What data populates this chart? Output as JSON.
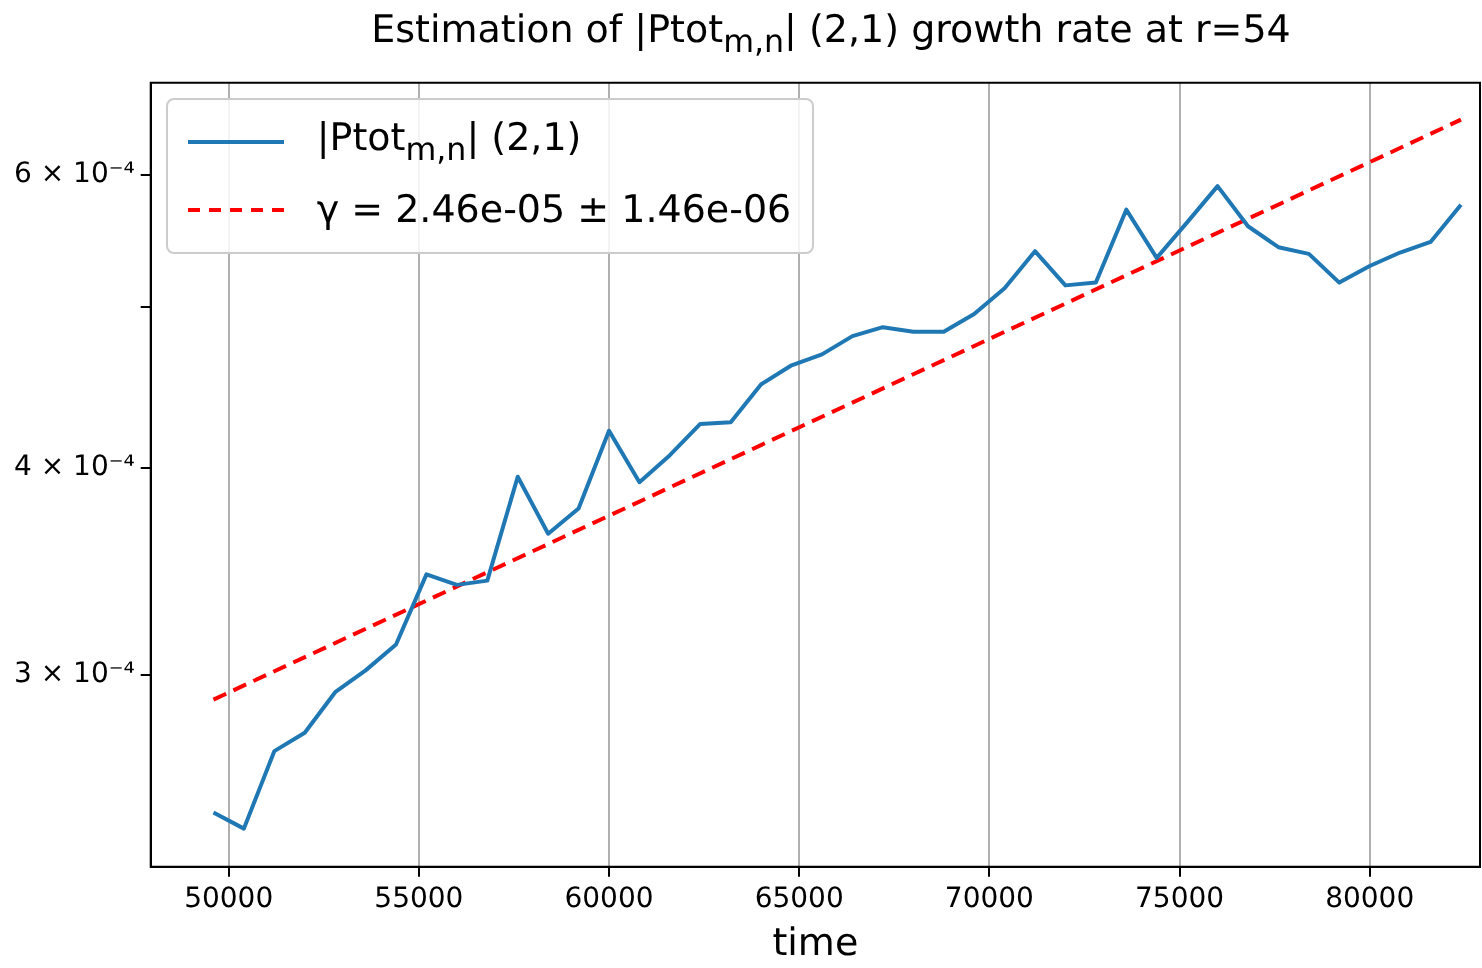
{
  "chart_data": {
    "type": "line",
    "title": "Estimation of |Ptot$_{m,n}$| (2,1) growth rate at r=54",
    "xlabel": "time",
    "xlim": [
      47950,
      82900
    ],
    "xticks": [
      50000,
      55000,
      60000,
      65000,
      70000,
      75000,
      80000
    ],
    "ylim": [
      0.00023,
      0.000682
    ],
    "yticks": [
      {
        "value": 0.0003,
        "label": "3 × 10⁻⁴"
      },
      {
        "value": 0.0004,
        "label": "4 × 10⁻⁴"
      },
      {
        "value": 0.0005,
        "label": null
      },
      {
        "value": 0.0006,
        "label": "6 × 10⁻⁴"
      }
    ],
    "log": "y",
    "grid": "x",
    "legend": "top left",
    "marker": "none",
    "series": [
      {
        "name": "|Ptot$_{m,n}$| (2,1)",
        "color": "#1f77b4",
        "line_style": "solid",
        "x": [
          49600,
          50400,
          51200,
          52000,
          52800,
          53600,
          54400,
          55200,
          56000,
          56800,
          57600,
          58400,
          59200,
          60000,
          60800,
          61600,
          62400,
          63200,
          64000,
          64800,
          65600,
          66400,
          67200,
          68000,
          68800,
          69600,
          70400,
          71200,
          72000,
          72800,
          73600,
          74400,
          75200,
          76000,
          76800,
          77600,
          78400,
          79200,
          80000,
          80800,
          81600,
          82400
        ],
        "values": [
          0.000248,
          0.0002425,
          0.00027,
          0.000277,
          0.000293,
          0.000302,
          0.000313,
          0.000345,
          0.00034,
          0.000342,
          0.000395,
          0.000365,
          0.000378,
          0.000421,
          0.000392,
          0.000407,
          0.000425,
          0.000426,
          0.000449,
          0.000461,
          0.000468,
          0.00048,
          0.000486,
          0.000483,
          0.000483,
          0.000495,
          0.000513,
          0.00054,
          0.000515,
          0.000517,
          0.000572,
          0.000535,
          0.000562,
          0.000591,
          0.000559,
          0.000543,
          0.000538,
          0.000517,
          0.000529,
          0.000539,
          0.000547,
          0.000576
        ]
      },
      {
        "name": "γ = 2.46e-05 ± 1.46e-06",
        "color": "#ff0000",
        "line_style": "dashed",
        "x": [
          49600,
          82400
        ],
        "values": [
          0.00029,
          0.000648
        ]
      }
    ]
  }
}
